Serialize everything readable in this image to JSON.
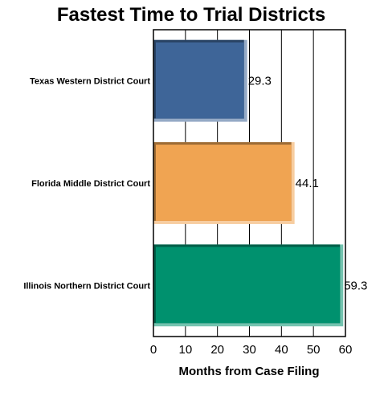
{
  "chart_data": {
    "type": "bar",
    "orientation": "horizontal",
    "title": "Fastest Time to Trial Districts",
    "xlabel": "Months from Case Filing",
    "ylabel": "",
    "categories": [
      "Texas Western District Court",
      "Florida Middle District Court",
      "Illinois Northern District Court"
    ],
    "values": [
      29.3,
      44.1,
      59.3
    ],
    "value_labels": [
      "29.3",
      "44.1",
      "59.3"
    ],
    "colors": [
      "#3e6598",
      "#f0a452",
      "#00916e"
    ],
    "xlim": [
      0,
      60
    ],
    "xticks": [
      0,
      10,
      20,
      30,
      40,
      50,
      60
    ],
    "xtick_labels": [
      "0",
      "10",
      "20",
      "30",
      "40",
      "50",
      "60"
    ],
    "grid": true,
    "legend": "none"
  }
}
